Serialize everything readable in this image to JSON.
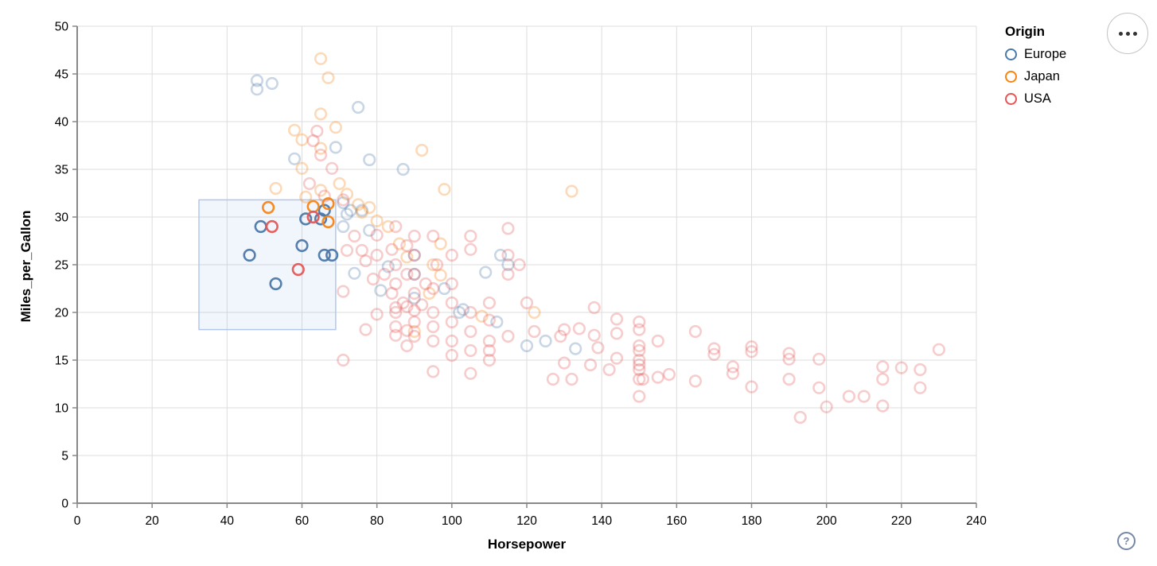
{
  "axes": {
    "x_title": "Horsepower",
    "y_title": "Miles_per_Gallon"
  },
  "legend": {
    "title": "Origin",
    "items": [
      {
        "label": "Europe",
        "color": "#4c78a8"
      },
      {
        "label": "Japan",
        "color": "#f58518"
      },
      {
        "label": "USA",
        "color": "#e45756"
      }
    ]
  },
  "controls": {
    "menu_icon": "ellipsis-menu",
    "help_label": "?"
  },
  "chart_data": {
    "type": "scatter",
    "title": "",
    "xlabel": "Horsepower",
    "ylabel": "Miles_per_Gallon",
    "xlim": [
      0,
      240
    ],
    "ylim": [
      0,
      50
    ],
    "x_ticks": [
      0,
      20,
      40,
      60,
      80,
      100,
      120,
      140,
      160,
      180,
      200,
      220,
      240
    ],
    "y_ticks": [
      0,
      5,
      10,
      15,
      20,
      25,
      30,
      35,
      40,
      45,
      50
    ],
    "grid": true,
    "legend_position": "top-right",
    "unselected_opacity": 0.3,
    "selected_opacity": 0.95,
    "brush": {
      "x": [
        32.5,
        69.0
      ],
      "y": [
        18.2,
        31.8
      ]
    },
    "series": [
      {
        "name": "Europe",
        "color": "#4c78a8",
        "points": [
          [
            48,
            44.3
          ],
          [
            48,
            43.4
          ],
          [
            52,
            44
          ],
          [
            75,
            41.5
          ],
          [
            58,
            36.1
          ],
          [
            69,
            37.3
          ],
          [
            78,
            36
          ],
          [
            87,
            35
          ],
          [
            71,
            31.5
          ],
          [
            76,
            30.7
          ],
          [
            72,
            30.3
          ],
          [
            73,
            30.7
          ],
          [
            78,
            28.6
          ],
          [
            71,
            29
          ],
          [
            74,
            24.1
          ],
          [
            81,
            22.3
          ],
          [
            83,
            24.8
          ],
          [
            90,
            26
          ],
          [
            90,
            24
          ],
          [
            90,
            21.5
          ],
          [
            98,
            22.5
          ],
          [
            102,
            20
          ],
          [
            103,
            20.3
          ],
          [
            109,
            24.2
          ],
          [
            112,
            19
          ],
          [
            113,
            26
          ],
          [
            115,
            25
          ],
          [
            120,
            16.5
          ],
          [
            125,
            17
          ],
          [
            133,
            16.2
          ]
        ],
        "selected": [
          [
            49,
            29
          ],
          [
            46,
            26
          ],
          [
            60,
            27
          ],
          [
            61,
            29.8
          ],
          [
            65,
            29.8
          ],
          [
            66,
            30.7
          ],
          [
            66,
            26
          ],
          [
            68,
            26
          ],
          [
            53,
            23
          ]
        ]
      },
      {
        "name": "Japan",
        "color": "#f58518",
        "points": [
          [
            65,
            46.6
          ],
          [
            67,
            44.6
          ],
          [
            65,
            40.8
          ],
          [
            69,
            39.4
          ],
          [
            58,
            39.1
          ],
          [
            60,
            38.1
          ],
          [
            65,
            37.2
          ],
          [
            92,
            37
          ],
          [
            60,
            35.1
          ],
          [
            70,
            33.5
          ],
          [
            53,
            33
          ],
          [
            65,
            32.8
          ],
          [
            98,
            32.9
          ],
          [
            132,
            32.7
          ],
          [
            61,
            32.1
          ],
          [
            72,
            32.4
          ],
          [
            75,
            31.3
          ],
          [
            78,
            31
          ],
          [
            76,
            30.5
          ],
          [
            80,
            29.6
          ],
          [
            83,
            29
          ],
          [
            86,
            27.2
          ],
          [
            88,
            25.8
          ],
          [
            97,
            27.2
          ],
          [
            95,
            25
          ],
          [
            97,
            23.9
          ],
          [
            94,
            22
          ],
          [
            122,
            20
          ],
          [
            108,
            19.6
          ],
          [
            90,
            18
          ]
        ],
        "selected": [
          [
            51,
            31
          ],
          [
            63,
            31.1
          ],
          [
            67,
            31.4
          ],
          [
            67,
            29.5
          ]
        ]
      },
      {
        "name": "USA",
        "color": "#e45756",
        "points": [
          [
            64,
            39
          ],
          [
            63,
            38
          ],
          [
            65,
            36.5
          ],
          [
            68,
            35.1
          ],
          [
            62,
            33.5
          ],
          [
            66,
            32.2
          ],
          [
            71,
            31.8
          ],
          [
            74,
            28
          ],
          [
            72,
            26.5
          ],
          [
            76,
            26.5
          ],
          [
            77,
            25.4
          ],
          [
            80,
            28.1
          ],
          [
            79,
            23.5
          ],
          [
            71,
            22.2
          ],
          [
            77,
            18.2
          ],
          [
            80,
            19.8
          ],
          [
            71,
            15
          ],
          [
            80,
            26
          ],
          [
            82,
            24
          ],
          [
            84,
            22
          ],
          [
            87,
            21
          ],
          [
            93,
            23
          ],
          [
            85,
            29
          ],
          [
            84,
            26.6
          ],
          [
            85,
            25
          ],
          [
            85,
            23
          ],
          [
            85,
            20.5
          ],
          [
            85,
            20
          ],
          [
            85,
            18.5
          ],
          [
            85,
            17.6
          ],
          [
            88,
            27
          ],
          [
            88,
            24
          ],
          [
            88,
            20.6
          ],
          [
            88,
            18.1
          ],
          [
            88,
            16.5
          ],
          [
            90,
            28
          ],
          [
            90,
            26
          ],
          [
            90,
            24
          ],
          [
            90,
            22
          ],
          [
            90,
            20.2
          ],
          [
            90,
            19
          ],
          [
            90,
            17.5
          ],
          [
            92,
            20.8
          ],
          [
            95,
            28
          ],
          [
            96,
            25
          ],
          [
            95,
            22.5
          ],
          [
            95,
            20
          ],
          [
            95,
            18.5
          ],
          [
            95,
            17
          ],
          [
            95,
            13.8
          ],
          [
            100,
            26
          ],
          [
            100,
            23
          ],
          [
            100,
            21
          ],
          [
            100,
            19
          ],
          [
            100,
            17
          ],
          [
            100,
            15.5
          ],
          [
            105,
            28
          ],
          [
            105,
            26.6
          ],
          [
            105,
            20
          ],
          [
            105,
            18
          ],
          [
            105,
            16
          ],
          [
            105,
            13.6
          ],
          [
            110,
            21
          ],
          [
            110,
            19.2
          ],
          [
            110,
            17
          ],
          [
            110,
            16
          ],
          [
            110,
            15
          ],
          [
            115,
            28.8
          ],
          [
            115,
            26
          ],
          [
            115,
            24
          ],
          [
            115,
            17.5
          ],
          [
            118,
            25
          ],
          [
            120,
            21
          ],
          [
            122,
            18
          ],
          [
            127,
            13
          ],
          [
            129,
            17.5
          ],
          [
            130,
            18.2
          ],
          [
            130,
            14.7
          ],
          [
            132,
            13
          ],
          [
            134,
            18.3
          ],
          [
            137,
            14.5
          ],
          [
            138,
            20.5
          ],
          [
            138,
            17.6
          ],
          [
            139,
            16.3
          ],
          [
            142,
            14
          ],
          [
            144,
            19.3
          ],
          [
            144,
            17.8
          ],
          [
            144,
            15.2
          ],
          [
            150,
            19
          ],
          [
            150,
            18.2
          ],
          [
            150,
            16.5
          ],
          [
            150,
            16
          ],
          [
            150,
            15
          ],
          [
            150,
            14.5
          ],
          [
            150,
            14
          ],
          [
            150,
            13
          ],
          [
            151,
            13
          ],
          [
            150,
            11.2
          ],
          [
            155,
            17
          ],
          [
            155,
            13.2
          ],
          [
            158,
            13.5
          ],
          [
            165,
            18
          ],
          [
            165,
            12.8
          ],
          [
            170,
            16.2
          ],
          [
            170,
            15.6
          ],
          [
            175,
            14.3
          ],
          [
            175,
            13.6
          ],
          [
            180,
            16.4
          ],
          [
            180,
            15.9
          ],
          [
            180,
            12.2
          ],
          [
            190,
            15.7
          ],
          [
            190,
            15.1
          ],
          [
            190,
            13
          ],
          [
            193,
            9
          ],
          [
            198,
            15.1
          ],
          [
            198,
            12.1
          ],
          [
            200,
            10.1
          ],
          [
            206,
            11.2
          ],
          [
            210,
            11.2
          ],
          [
            215,
            14.3
          ],
          [
            215,
            13
          ],
          [
            215,
            10.2
          ],
          [
            220,
            14.2
          ],
          [
            225,
            14
          ],
          [
            225,
            12.1
          ],
          [
            230,
            16.1
          ]
        ],
        "selected": [
          [
            52,
            29
          ],
          [
            63,
            30
          ],
          [
            59,
            24.5
          ]
        ]
      }
    ]
  }
}
